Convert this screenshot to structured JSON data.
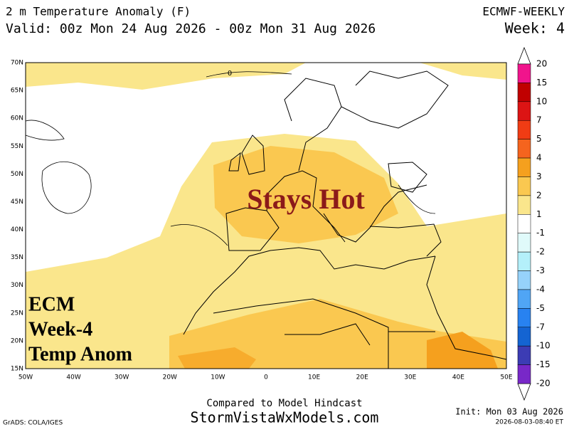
{
  "header": {
    "title": "2 m Temperature Anomaly (F)",
    "valid": "Valid: 00z Mon 24 Aug 2026 - 00z Mon 31 Aug 2026",
    "model": "ECMWF-WEEKLY",
    "week": "Week: 4"
  },
  "map": {
    "lat_labels": [
      "70N",
      "65N",
      "60N",
      "55N",
      "50N",
      "45N",
      "40N",
      "35N",
      "30N",
      "25N",
      "20N",
      "15N"
    ],
    "lon_labels": [
      "50W",
      "40W",
      "30W",
      "20W",
      "10W",
      "0",
      "10E",
      "20E",
      "30E",
      "40E",
      "50E"
    ],
    "contour_label": "0",
    "annotation": "Stays Hot",
    "overlay": [
      "ECM",
      "Week-4",
      "Temp Anom"
    ]
  },
  "colorbar": {
    "labels": [
      "20",
      "15",
      "10",
      "7",
      "5",
      "4",
      "3",
      "2",
      "1",
      "-1",
      "-2",
      "-3",
      "-4",
      "-5",
      "-7",
      "-10",
      "-15",
      "-20"
    ],
    "colors": [
      "#f0148c",
      "#c00000",
      "#dc1414",
      "#f03c14",
      "#f5641e",
      "#f5a01e",
      "#fac850",
      "#fae68c",
      "#ffffff",
      "#e0fafa",
      "#b4f0fa",
      "#96d2fa",
      "#50a5f5",
      "#2882f0",
      "#1464d2",
      "#3c3cb4",
      "#7828c8"
    ]
  },
  "footer": {
    "compared": "Compared to Model Hindcast",
    "site": "StormVistaWxModels.com",
    "grads": "GrADS: COLA/IGES",
    "init": "Init: Mon 03 Aug 2026",
    "timestamp": "2026-08-03-08:40 ET"
  }
}
